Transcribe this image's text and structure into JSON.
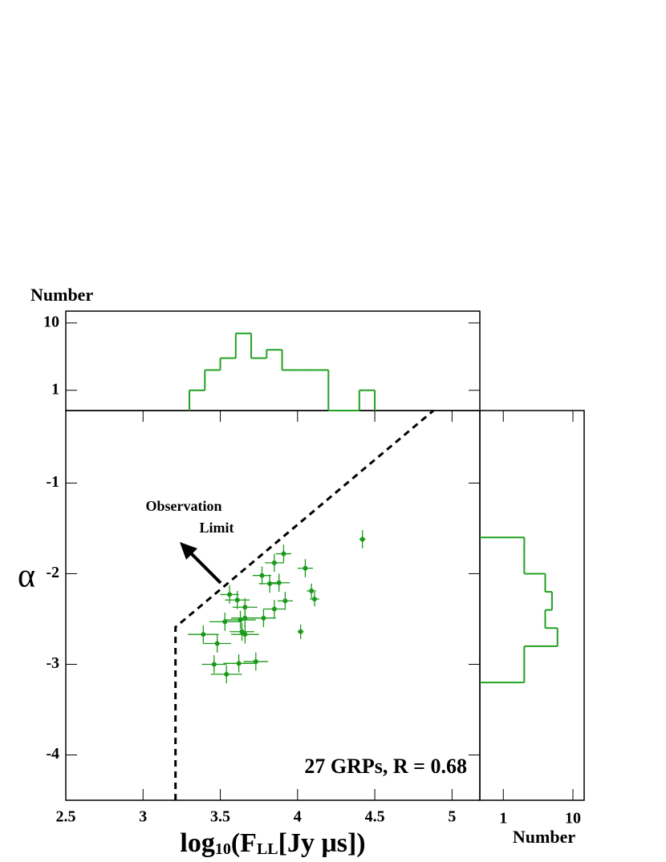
{
  "chart_data": [
    {
      "type": "scatter",
      "x_label": [
        "log",
        "10",
        "(F",
        "LL",
        "[Jy μs])"
      ],
      "y_label": "α",
      "xlim": [
        2.5,
        5.18
      ],
      "ylim": [
        -4.5,
        -0.2
      ],
      "xticks": [
        2.5,
        3,
        3.5,
        4,
        4.5,
        5
      ],
      "yticks": [
        -4,
        -3,
        -2,
        -1
      ],
      "color": "#1a9a1a",
      "x": [
        4.42,
        3.91,
        3.85,
        3.77,
        4.05,
        3.82,
        3.88,
        3.56,
        3.61,
        4.09,
        4.11,
        3.92,
        3.85,
        3.66,
        3.78,
        3.53,
        3.63,
        3.66,
        3.64,
        3.66,
        4.02,
        3.39,
        3.48,
        3.46,
        3.62,
        3.73,
        3.54
      ],
      "values": [
        -1.62,
        -1.78,
        -1.88,
        -2.02,
        -1.94,
        -2.11,
        -2.1,
        -2.23,
        -2.29,
        -2.19,
        -2.28,
        -2.3,
        -2.39,
        -2.37,
        -2.49,
        -2.53,
        -2.51,
        -2.49,
        -2.64,
        -2.67,
        -2.64,
        -2.67,
        -2.77,
        -3.0,
        -2.99,
        -2.97,
        -3.11
      ],
      "xerr": [
        0.02,
        0.05,
        0.06,
        0.06,
        0.05,
        0.07,
        0.07,
        0.06,
        0.08,
        0.03,
        0.03,
        0.05,
        0.07,
        0.08,
        0.08,
        0.1,
        0.1,
        0.09,
        0.08,
        0.09,
        0.02,
        0.1,
        0.09,
        0.08,
        0.1,
        0.08,
        0.1
      ],
      "yerr": [
        0.1,
        0.1,
        0.1,
        0.1,
        0.1,
        0.1,
        0.1,
        0.1,
        0.1,
        0.08,
        0.08,
        0.1,
        0.1,
        0.1,
        0.1,
        0.1,
        0.1,
        0.1,
        0.1,
        0.1,
        0.08,
        0.1,
        0.1,
        0.1,
        0.1,
        0.1,
        0.1
      ],
      "limit_line": {
        "x": [
          3.21,
          3.21,
          4.88
        ],
        "y": [
          -4.5,
          -2.59,
          -0.2
        ]
      },
      "limit_label": [
        "Observation",
        "Limit"
      ],
      "annotation": "27 GRPs, R = 0.68"
    },
    {
      "type": "histogram",
      "orientation": "vertical",
      "y_label": "Number",
      "log": true,
      "bins": [
        3.3,
        3.4,
        3.5,
        3.6,
        3.7,
        3.8,
        3.9,
        4.0,
        4.1,
        4.2,
        4.3,
        4.4,
        4.5
      ],
      "counts": [
        1,
        2,
        3,
        7,
        3,
        4,
        2,
        2,
        2,
        0,
        0,
        1
      ],
      "xlim": [
        2.5,
        5.18
      ],
      "ylim": [
        0.5,
        15
      ],
      "yticks": [
        1,
        10
      ],
      "color": "#22a022"
    },
    {
      "type": "histogram",
      "orientation": "horizontal",
      "x_label": "Number",
      "log": true,
      "bins": [
        -3.2,
        -3.0,
        -2.8,
        -2.6,
        -2.4,
        -2.2,
        -2.0,
        -1.8,
        -1.6
      ],
      "counts": [
        2,
        2,
        6,
        4,
        5,
        4,
        2,
        2
      ],
      "xlim": [
        0.46,
        14.5
      ],
      "ylim": [
        -4.5,
        -0.2
      ],
      "xticks": [
        1,
        10
      ],
      "color": "#22a022"
    }
  ]
}
